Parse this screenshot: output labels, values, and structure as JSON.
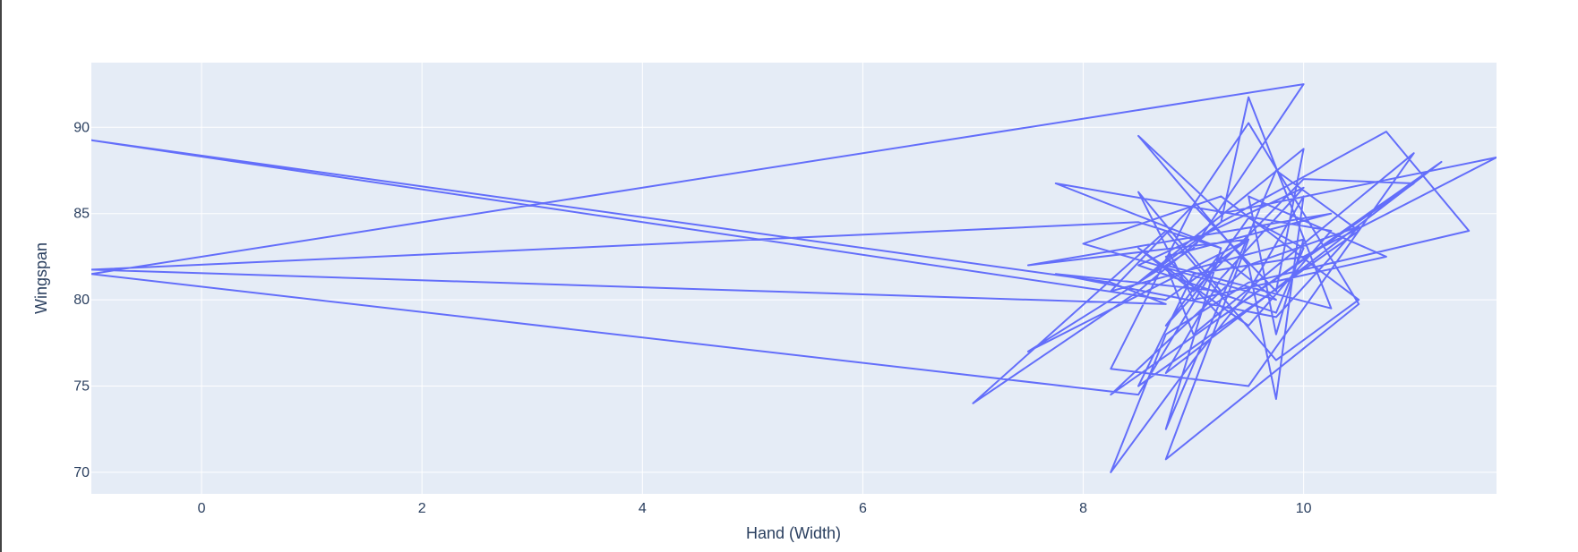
{
  "chart_data": {
    "type": "line",
    "title": "",
    "xlabel": "Hand (Width)",
    "ylabel": "Wingspan",
    "xlim": [
      -1,
      11.75
    ],
    "ylim": [
      68.75,
      93.75
    ],
    "x_ticks": [
      0,
      2,
      4,
      6,
      8,
      10
    ],
    "y_ticks": [
      70,
      75,
      80,
      85,
      90
    ],
    "grid": true,
    "legend": "none",
    "colors": {
      "line": "#636efa",
      "plot_bg": "#e5ecf6",
      "grid": "#ffffff",
      "text": "#2a3f5f"
    },
    "series": [
      {
        "x": [
          9.25,
          8.5,
          -1,
          8.75,
          8.25,
          -1,
          8.75,
          9.5,
          7.5,
          9.0,
          10.0,
          -1,
          8.5,
          9.25,
          9.75,
          8.0,
          9.25,
          10.5,
          9.75,
          8.75,
          7.0,
          8.5,
          9.25,
          9.5,
          10.25,
          8.75,
          9.0,
          11.0,
          9.5,
          8.25,
          9.0,
          9.75,
          10.0,
          8.5,
          9.25,
          10.75,
          11.5,
          9.5,
          8.75,
          8.25,
          9.0,
          9.5,
          10.0,
          9.75,
          9.5,
          8.5,
          9.25,
          11.75,
          10.0,
          9.0,
          8.5,
          10.5,
          9.75,
          8.75,
          9.25,
          7.75,
          10.25,
          9.5,
          8.5,
          9.0,
          10.0,
          11.0,
          9.25,
          8.75,
          10.25,
          7.5,
          9.5,
          8.75,
          10.5,
          9.5,
          9.0,
          8.25,
          10.0,
          9.75,
          9.5,
          10.75,
          9.0,
          8.5,
          9.25,
          7.75,
          9.75,
          10.5,
          9.5,
          8.25,
          11.25,
          8.75,
          9.25,
          10.0,
          8.5,
          9.75,
          10.0,
          9.5,
          9.0,
          8.75,
          9.25
        ],
        "y": [
          83.0,
          84.5,
          81.75,
          79.75,
          81.0,
          89.25,
          80.0,
          83.5,
          77.0,
          83.0,
          92.5,
          81.5,
          74.5,
          82.5,
          80.0,
          83.25,
          86.0,
          80.0,
          76.5,
          84.0,
          74.0,
          80.5,
          84.5,
          91.75,
          79.5,
          82.0,
          78.0,
          88.5,
          75.0,
          76.0,
          85.5,
          80.5,
          88.75,
          81.0,
          84.5,
          89.75,
          84.0,
          81.0,
          78.0,
          70.0,
          76.5,
          80.5,
          86.0,
          74.25,
          82.0,
          89.5,
          85.0,
          88.25,
          82.5,
          81.5,
          75.0,
          84.0,
          87.5,
          72.5,
          83.0,
          86.75,
          84.0,
          78.5,
          83.0,
          80.5,
          87.0,
          86.75,
          79.0,
          82.5,
          85.0,
          82.0,
          83.5,
          70.75,
          79.75,
          90.25,
          85.5,
          80.5,
          83.5,
          78.0,
          86.0,
          82.5,
          80.0,
          86.25,
          80.5,
          81.5,
          79.0,
          84.25,
          82.0,
          74.5,
          88.0,
          75.75,
          81.25,
          86.5,
          82.0,
          79.25,
          83.0,
          84.75,
          80.25,
          78.5,
          82.75
        ]
      }
    ]
  }
}
